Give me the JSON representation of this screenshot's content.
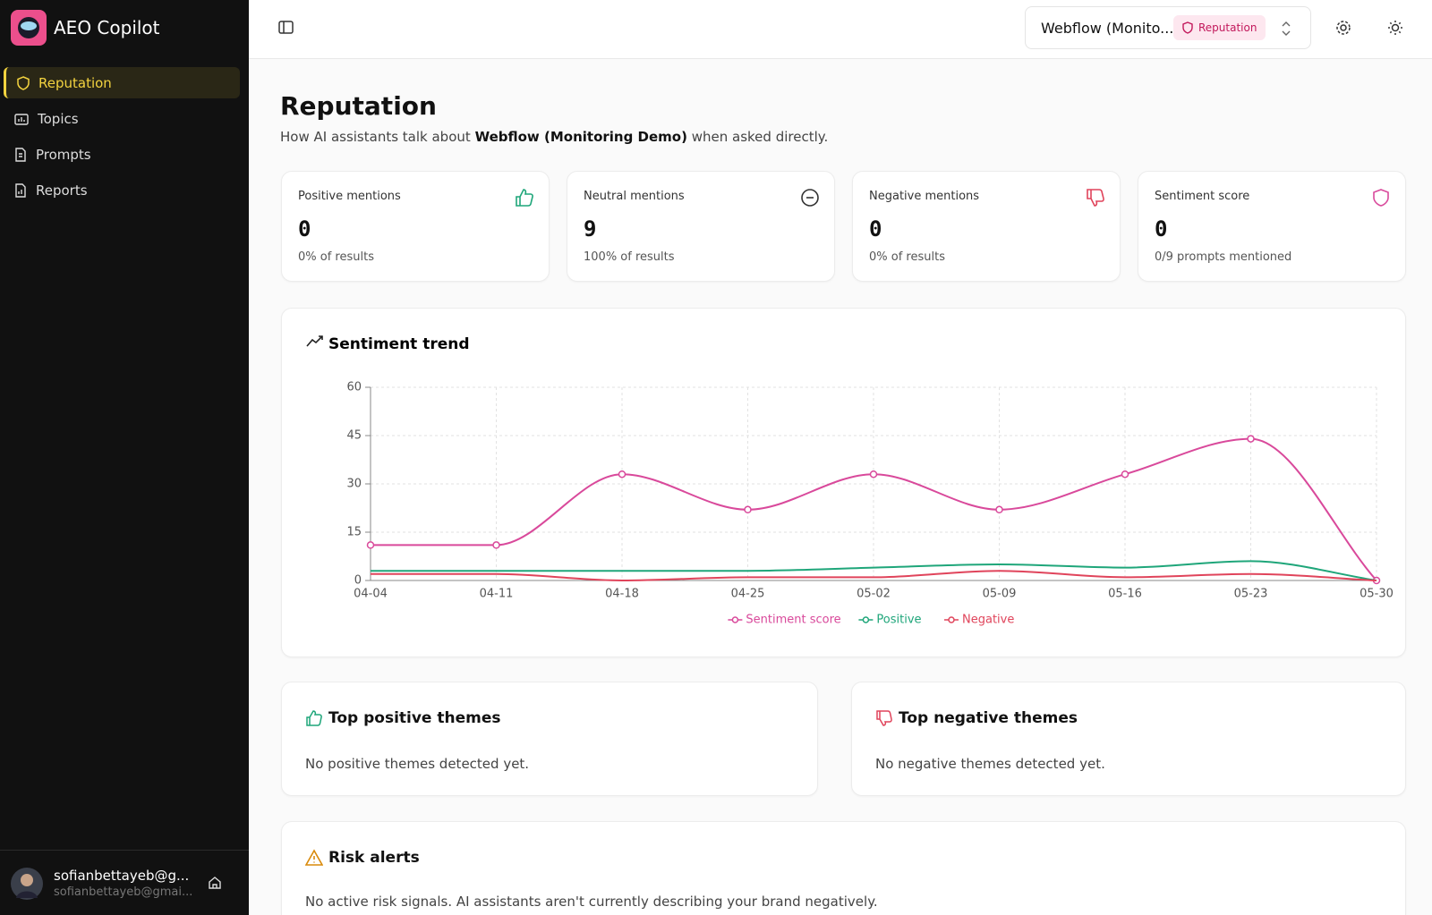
{
  "sidebar": {
    "brand": "AEO Copilot",
    "nav": [
      "Reputation",
      "Topics",
      "Prompts",
      "Reports"
    ],
    "user": {
      "name": "sofianbettayeb@g...",
      "email": "sofianbettayeb@gmai..."
    }
  },
  "header": {
    "project": "Webflow (Monito...",
    "badge": "Reputation"
  },
  "page": {
    "title": "Reputation",
    "subtitle": [
      "How AI assistants talk about",
      "Webflow (Monitoring Demo)",
      "when asked directly."
    ]
  },
  "cards": [
    {
      "label": "Positive mentions",
      "value": 0,
      "note": "0% of results"
    },
    {
      "label": "Neutral mentions",
      "value": 9,
      "note": "100% of results"
    },
    {
      "label": "Negative mentions",
      "value": 0,
      "note": "0% of results"
    },
    {
      "label": "Sentiment score",
      "value": 0,
      "note": "0/9 prompts mentioned"
    }
  ],
  "chart_data": {
    "type": "line",
    "title": "Sentiment trend",
    "categories": [
      "04-04",
      "04-11",
      "04-18",
      "04-25",
      "05-02",
      "05-09",
      "05-16",
      "05-23",
      "05-30"
    ],
    "series": [
      {
        "name": "Sentiment score",
        "color": "#d9499b",
        "markers": true,
        "values": [
          11,
          11,
          33,
          22,
          33,
          22,
          33,
          44,
          0
        ]
      },
      {
        "name": "Positive",
        "color": "#1fa67a",
        "markers": false,
        "values": [
          3,
          3,
          3,
          3,
          4,
          5,
          4,
          6,
          0
        ]
      },
      {
        "name": "Negative",
        "color": "#e0445b",
        "markers": false,
        "values": [
          2,
          2,
          0,
          1,
          1,
          3,
          1,
          2,
          0
        ]
      }
    ],
    "ylim": [
      0,
      60
    ],
    "yticks": [
      0,
      15,
      30,
      45,
      60
    ],
    "grid": true,
    "legend": "bottom"
  },
  "themes": {
    "positive": {
      "title": "Top positive themes",
      "empty": "No positive themes detected yet."
    },
    "negative": {
      "title": "Top negative themes",
      "empty": "No negative themes detected yet."
    }
  },
  "risk": {
    "title": "Risk alerts",
    "empty": "No active risk signals. AI assistants aren't currently describing your brand negatively."
  }
}
